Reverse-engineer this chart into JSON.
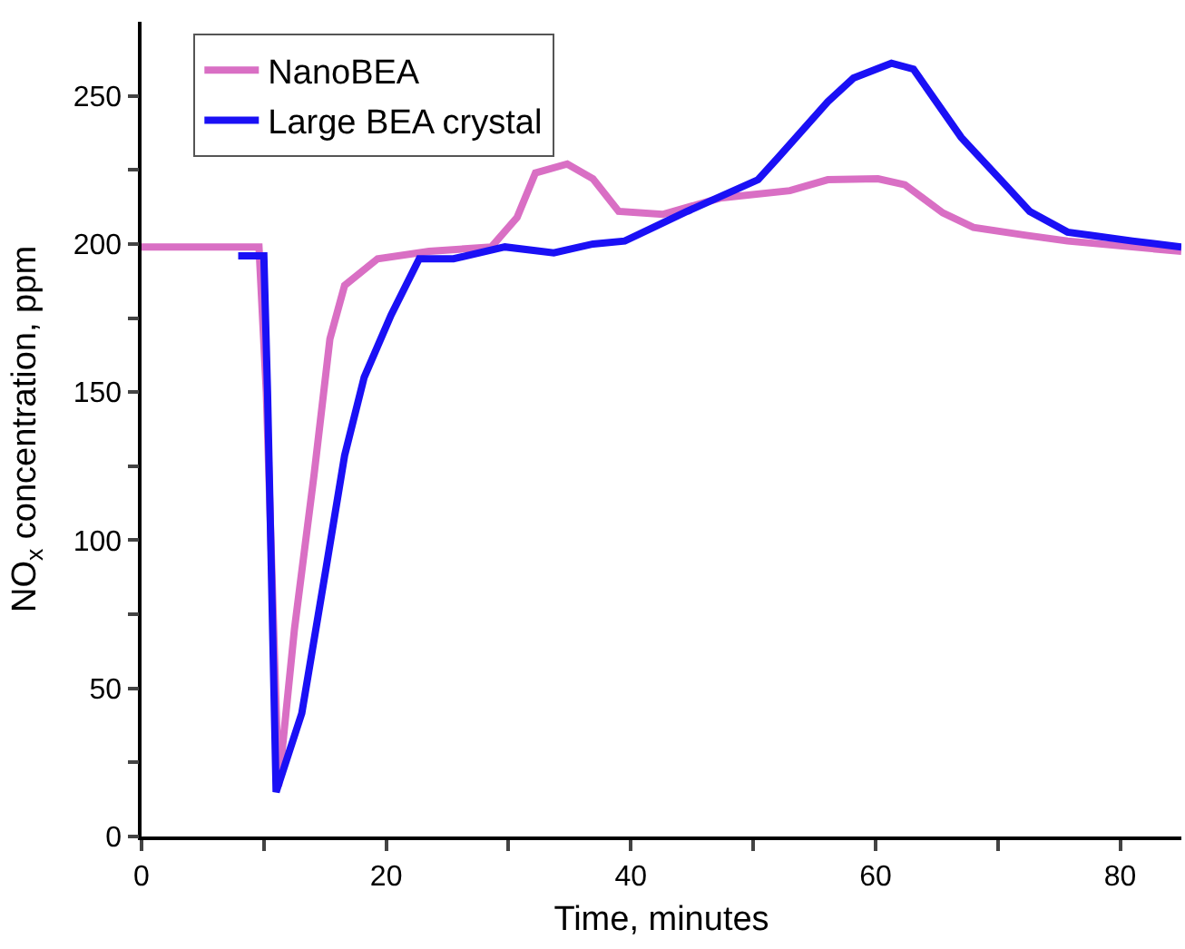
{
  "chart_data": {
    "type": "line",
    "xlabel": "Time, minutes",
    "ylabel": "NO$_{x}$ concentration, ppm",
    "xlim": [
      0,
      85
    ],
    "ylim": [
      0,
      275
    ],
    "xticks": [
      0,
      {
        "value": 10,
        "label": null
      },
      20,
      {
        "value": 30,
        "label": null
      },
      40,
      {
        "value": 50,
        "label": null
      },
      60,
      {
        "value": 70,
        "label": null
      },
      80
    ],
    "yticks": [
      0,
      {
        "value": 25,
        "label": null
      },
      50,
      {
        "value": 75,
        "label": null
      },
      100,
      {
        "value": 125,
        "label": null
      },
      150,
      {
        "value": 175,
        "label": null
      },
      200,
      {
        "value": 225,
        "label": null
      },
      250
    ],
    "legend": "top left",
    "marker": "none",
    "line_style": "solid",
    "series": [
      {
        "name": "NanoBEA",
        "color": "#d96fc4",
        "x": [
          0,
          5,
          9.6,
          10.2,
          11.2,
          12.5,
          14.1,
          15.4,
          16.6,
          19.3,
          23.5,
          28.6,
          30.7,
          32.2,
          34.8,
          36.9,
          39,
          42.6,
          47.3,
          53,
          56.1,
          60.2,
          62.4,
          65.5,
          68,
          72.2,
          75.7,
          85
        ],
        "values": [
          199,
          199,
          199,
          150,
          17,
          70,
          122,
          168,
          186,
          195,
          197.5,
          199,
          209,
          224,
          227,
          222,
          211,
          210,
          215.5,
          218,
          221.7,
          222,
          220,
          210.5,
          205.6,
          203,
          201,
          197.5
        ]
      },
      {
        "name": "Large BEA crystal",
        "color": "#1a10f5",
        "x": [
          7.9,
          10.0,
          10.3,
          11.0,
          13.1,
          15.1,
          16.6,
          18.2,
          20.4,
          22.7,
          25.5,
          29.7,
          33.7,
          36.9,
          39.5,
          44.6,
          50.4,
          52,
          56.1,
          58.2,
          61.3,
          63.1,
          67,
          70.6,
          72.6,
          75.7,
          81,
          85
        ],
        "values": [
          196,
          196,
          150,
          15,
          41.6,
          91,
          128.6,
          155,
          176,
          195,
          195,
          199,
          197,
          200,
          201,
          211,
          221.7,
          229,
          248,
          256,
          261,
          259,
          236,
          220,
          211,
          204,
          201,
          199
        ]
      }
    ]
  }
}
